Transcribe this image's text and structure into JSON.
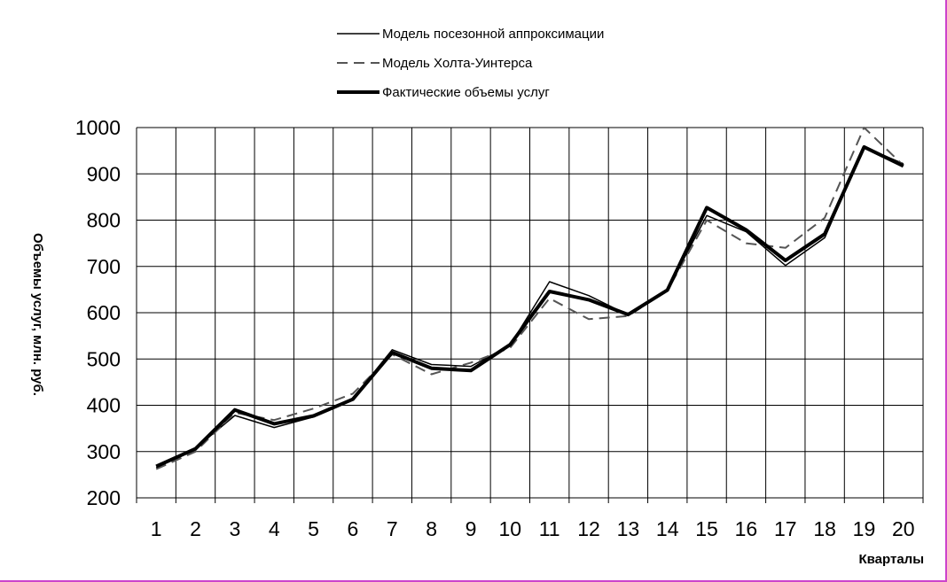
{
  "chart_data": {
    "type": "line",
    "xlabel": "Кварталы",
    "ylabel": "Объемы услуг, млн. руб.",
    "categories": [
      "1",
      "2",
      "3",
      "4",
      "5",
      "6",
      "7",
      "8",
      "9",
      "10",
      "11",
      "12",
      "13",
      "14",
      "15",
      "16",
      "17",
      "18",
      "19",
      "20"
    ],
    "ylim": [
      200,
      1000
    ],
    "yticks": [
      200,
      300,
      400,
      500,
      600,
      700,
      800,
      900,
      1000
    ],
    "grid": true,
    "legend_position": "top-center",
    "series": [
      {
        "name": "Модель посезонной аппроксимации",
        "style": "thin-solid",
        "color": "#000000",
        "values": [
          265,
          307,
          378,
          352,
          375,
          415,
          520,
          488,
          484,
          530,
          667,
          637,
          595,
          650,
          810,
          775,
          702,
          762,
          958,
          922
        ]
      },
      {
        "name": "Модель Холта-Уинтерса",
        "style": "dashed",
        "color": "#555555",
        "values": [
          262,
          300,
          384,
          368,
          393,
          425,
          510,
          467,
          492,
          524,
          631,
          586,
          593,
          648,
          800,
          750,
          740,
          805,
          1000,
          918
        ]
      },
      {
        "name": "Фактические объемы услуг",
        "style": "thick-solid",
        "color": "#000000",
        "values": [
          268,
          306,
          390,
          360,
          377,
          413,
          514,
          480,
          475,
          531,
          646,
          628,
          596,
          649,
          827,
          779,
          713,
          770,
          958,
          917
        ]
      }
    ]
  }
}
